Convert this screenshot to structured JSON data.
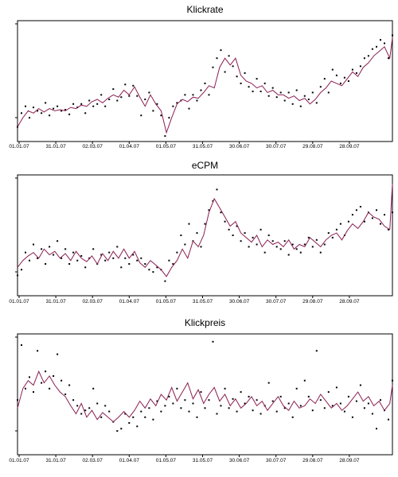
{
  "chart_data": [
    {
      "type": "line",
      "title": "Klickrate",
      "x_tick_labels": [
        "01.01.07",
        "31.01.07",
        "02.03.07",
        "01.04.07",
        "01.05.07",
        "31.05.07",
        "30.06.07",
        "30.07.07",
        "29.08.07",
        "28.09.07"
      ],
      "grid": false,
      "legend": "none",
      "series": [
        {
          "style": "points",
          "color": "#000000",
          "x": [
            0,
            3,
            6,
            9,
            12,
            15,
            18,
            21,
            24,
            27,
            30,
            33,
            36,
            39,
            42,
            45,
            48,
            51,
            54,
            57,
            60,
            63,
            66,
            69,
            72,
            75,
            78,
            81,
            84,
            87,
            90,
            93,
            96,
            99,
            102,
            105,
            108,
            111,
            114,
            117,
            120,
            123,
            126,
            129,
            132,
            135,
            138,
            141,
            144,
            147,
            150,
            153,
            156,
            159,
            162,
            165,
            168,
            171,
            174,
            177,
            180,
            183,
            186,
            189,
            192,
            195,
            198,
            201,
            204,
            207,
            210,
            213,
            216,
            219,
            222,
            225,
            228,
            231,
            234,
            237,
            240,
            243,
            246,
            249,
            252,
            255,
            258,
            261,
            264,
            267,
            270,
            273,
            276,
            279,
            282
          ],
          "y": [
            0.1,
            0.22,
            0.28,
            0.18,
            0.27,
            0.24,
            0.22,
            0.31,
            0.2,
            0.26,
            0.28,
            0.24,
            0.25,
            0.21,
            0.3,
            0.27,
            0.3,
            0.22,
            0.33,
            0.28,
            0.3,
            0.38,
            0.28,
            0.34,
            0.43,
            0.33,
            0.36,
            0.47,
            0.37,
            0.46,
            0.37,
            0.2,
            0.34,
            0.4,
            0.24,
            0.3,
            0.2,
            0.02,
            0.18,
            0.28,
            0.31,
            0.33,
            0.38,
            0.26,
            0.38,
            0.33,
            0.42,
            0.48,
            0.38,
            0.62,
            0.7,
            0.77,
            0.58,
            0.72,
            0.63,
            0.54,
            0.48,
            0.57,
            0.45,
            0.41,
            0.52,
            0.41,
            0.48,
            0.37,
            0.44,
            0.36,
            0.4,
            0.33,
            0.4,
            0.3,
            0.42,
            0.28,
            0.37,
            0.34,
            0.4,
            0.31,
            0.45,
            0.52,
            0.4,
            0.6,
            0.55,
            0.48,
            0.53,
            0.5,
            0.6,
            0.57,
            0.63,
            0.7,
            0.72,
            0.78,
            0.8,
            0.86,
            0.83,
            0.7,
            0.9
          ]
        },
        {
          "style": "line",
          "color": "#8a1e52",
          "x": [
            0,
            4,
            8,
            12,
            16,
            20,
            24,
            28,
            32,
            36,
            40,
            44,
            48,
            52,
            56,
            60,
            64,
            68,
            72,
            76,
            80,
            84,
            88,
            92,
            96,
            100,
            104,
            108,
            112,
            116,
            120,
            124,
            128,
            132,
            136,
            140,
            144,
            148,
            152,
            156,
            160,
            164,
            168,
            172,
            176,
            180,
            184,
            188,
            192,
            196,
            200,
            204,
            208,
            212,
            216,
            220,
            224,
            228,
            232,
            236,
            240,
            244,
            248,
            252,
            256,
            260,
            264,
            268,
            272,
            276,
            280,
            282
          ],
          "y": [
            0.1,
            0.18,
            0.24,
            0.22,
            0.26,
            0.23,
            0.26,
            0.24,
            0.25,
            0.24,
            0.27,
            0.26,
            0.29,
            0.28,
            0.32,
            0.34,
            0.31,
            0.35,
            0.38,
            0.36,
            0.42,
            0.38,
            0.45,
            0.36,
            0.28,
            0.38,
            0.3,
            0.24,
            0.05,
            0.18,
            0.3,
            0.34,
            0.32,
            0.36,
            0.35,
            0.4,
            0.46,
            0.44,
            0.62,
            0.7,
            0.64,
            0.7,
            0.55,
            0.5,
            0.48,
            0.44,
            0.46,
            0.4,
            0.42,
            0.38,
            0.38,
            0.35,
            0.37,
            0.33,
            0.35,
            0.3,
            0.34,
            0.4,
            0.44,
            0.5,
            0.48,
            0.46,
            0.52,
            0.58,
            0.54,
            0.62,
            0.66,
            0.72,
            0.76,
            0.8,
            0.7,
            0.88
          ]
        }
      ]
    },
    {
      "type": "line",
      "title": "eCPM",
      "x_tick_labels": [
        "01.01.07",
        "31.01.07",
        "02.03.07",
        "01.04.07",
        "01.05.07",
        "31.05.07",
        "30.06.07",
        "30.07.07",
        "29.08.07",
        "28.09.07"
      ],
      "grid": false,
      "legend": "none",
      "series": [
        {
          "style": "points",
          "color": "#000000",
          "x": [
            0,
            3,
            6,
            9,
            12,
            15,
            18,
            21,
            24,
            27,
            30,
            33,
            36,
            39,
            42,
            45,
            48,
            51,
            54,
            57,
            60,
            63,
            66,
            69,
            72,
            75,
            78,
            81,
            84,
            87,
            90,
            93,
            96,
            99,
            102,
            105,
            108,
            111,
            114,
            117,
            120,
            123,
            126,
            129,
            132,
            135,
            138,
            141,
            144,
            147,
            150,
            153,
            156,
            159,
            162,
            165,
            168,
            171,
            174,
            177,
            180,
            183,
            186,
            189,
            192,
            195,
            198,
            201,
            204,
            207,
            210,
            213,
            216,
            219,
            222,
            225,
            228,
            231,
            234,
            237,
            240,
            243,
            246,
            249,
            252,
            255,
            258,
            261,
            264,
            267,
            270,
            273,
            276,
            279,
            282
          ],
          "y": [
            0.15,
            0.2,
            0.35,
            0.28,
            0.42,
            0.3,
            0.38,
            0.25,
            0.4,
            0.33,
            0.45,
            0.3,
            0.38,
            0.25,
            0.35,
            0.28,
            0.32,
            0.22,
            0.3,
            0.38,
            0.25,
            0.33,
            0.28,
            0.35,
            0.3,
            0.4,
            0.22,
            0.3,
            0.25,
            0.33,
            0.28,
            0.3,
            0.25,
            0.2,
            0.18,
            0.22,
            0.2,
            0.1,
            0.28,
            0.25,
            0.35,
            0.5,
            0.42,
            0.6,
            0.45,
            0.52,
            0.4,
            0.6,
            0.72,
            0.8,
            0.9,
            0.7,
            0.62,
            0.55,
            0.5,
            0.58,
            0.45,
            0.52,
            0.4,
            0.48,
            0.42,
            0.55,
            0.35,
            0.5,
            0.45,
            0.4,
            0.38,
            0.45,
            0.33,
            0.42,
            0.38,
            0.35,
            0.42,
            0.48,
            0.4,
            0.46,
            0.35,
            0.42,
            0.52,
            0.48,
            0.55,
            0.6,
            0.5,
            0.62,
            0.68,
            0.72,
            0.75,
            0.62,
            0.7,
            0.65,
            0.72,
            0.6,
            0.68,
            0.55,
            0.7
          ]
        },
        {
          "style": "line",
          "color": "#8a1e52",
          "x": [
            0,
            4,
            8,
            12,
            16,
            20,
            24,
            28,
            32,
            36,
            40,
            44,
            48,
            52,
            56,
            60,
            64,
            68,
            72,
            76,
            80,
            84,
            88,
            92,
            96,
            100,
            104,
            108,
            112,
            116,
            120,
            124,
            128,
            132,
            136,
            140,
            144,
            148,
            152,
            156,
            160,
            164,
            168,
            172,
            176,
            180,
            184,
            188,
            192,
            196,
            200,
            204,
            208,
            212,
            216,
            220,
            224,
            228,
            232,
            236,
            240,
            244,
            248,
            252,
            256,
            260,
            264,
            268,
            272,
            276,
            280,
            282
          ],
          "y": [
            0.22,
            0.28,
            0.32,
            0.35,
            0.3,
            0.38,
            0.33,
            0.36,
            0.3,
            0.34,
            0.28,
            0.36,
            0.3,
            0.27,
            0.32,
            0.25,
            0.34,
            0.28,
            0.36,
            0.3,
            0.38,
            0.3,
            0.36,
            0.26,
            0.22,
            0.28,
            0.24,
            0.2,
            0.14,
            0.22,
            0.28,
            0.38,
            0.3,
            0.45,
            0.4,
            0.5,
            0.7,
            0.82,
            0.74,
            0.66,
            0.58,
            0.62,
            0.52,
            0.48,
            0.44,
            0.5,
            0.4,
            0.46,
            0.42,
            0.44,
            0.4,
            0.46,
            0.38,
            0.42,
            0.4,
            0.48,
            0.44,
            0.4,
            0.46,
            0.5,
            0.52,
            0.46,
            0.54,
            0.6,
            0.56,
            0.62,
            0.7,
            0.66,
            0.64,
            0.58,
            0.55,
            0.95
          ]
        }
      ]
    },
    {
      "type": "line",
      "title": "Klickpreis",
      "x_tick_labels": [
        "01.01.07",
        "31.01.07",
        "02.03.07",
        "01.04.07",
        "01.05.07",
        "31.05.07",
        "30.06.07",
        "30.07.07",
        "29.08.07",
        "28.09.07"
      ],
      "grid": false,
      "legend": "none",
      "series": [
        {
          "style": "points",
          "color": "#000000",
          "x": [
            0,
            3,
            6,
            9,
            12,
            15,
            18,
            21,
            24,
            27,
            30,
            33,
            36,
            39,
            42,
            45,
            48,
            51,
            54,
            57,
            60,
            63,
            66,
            69,
            72,
            75,
            78,
            81,
            84,
            87,
            90,
            93,
            96,
            99,
            102,
            105,
            108,
            111,
            114,
            117,
            120,
            123,
            126,
            129,
            132,
            135,
            138,
            141,
            144,
            147,
            150,
            153,
            156,
            159,
            162,
            165,
            168,
            171,
            174,
            177,
            180,
            183,
            186,
            189,
            192,
            195,
            198,
            201,
            204,
            207,
            210,
            213,
            216,
            219,
            222,
            225,
            228,
            231,
            234,
            237,
            240,
            243,
            246,
            249,
            252,
            255,
            258,
            261,
            264,
            267,
            270,
            273,
            276,
            279,
            282
          ],
          "y": [
            0.45,
            0.93,
            0.55,
            0.65,
            0.52,
            0.88,
            0.6,
            0.7,
            0.55,
            0.66,
            0.85,
            0.62,
            0.5,
            0.58,
            0.45,
            0.4,
            0.33,
            0.36,
            0.38,
            0.55,
            0.42,
            0.3,
            0.4,
            0.35,
            0.26,
            0.18,
            0.2,
            0.33,
            0.25,
            0.3,
            0.22,
            0.35,
            0.3,
            0.38,
            0.28,
            0.44,
            0.35,
            0.4,
            0.48,
            0.42,
            0.55,
            0.38,
            0.45,
            0.35,
            0.42,
            0.3,
            0.52,
            0.38,
            0.45,
            0.96,
            0.33,
            0.4,
            0.55,
            0.38,
            0.46,
            0.35,
            0.52,
            0.42,
            0.48,
            0.36,
            0.45,
            0.33,
            0.4,
            0.6,
            0.44,
            0.35,
            0.48,
            0.38,
            0.42,
            0.3,
            0.55,
            0.4,
            0.62,
            0.48,
            0.36,
            0.88,
            0.45,
            0.38,
            0.52,
            0.4,
            0.56,
            0.42,
            0.35,
            0.48,
            0.3,
            0.44,
            0.58,
            0.38,
            0.42,
            0.33,
            0.2,
            0.45,
            0.36,
            0.28,
            0.62
          ]
        },
        {
          "style": "line",
          "color": "#8a1e52",
          "x": [
            0,
            4,
            8,
            12,
            16,
            20,
            24,
            28,
            32,
            36,
            40,
            44,
            48,
            52,
            56,
            60,
            64,
            68,
            72,
            76,
            80,
            84,
            88,
            92,
            96,
            100,
            104,
            108,
            112,
            116,
            120,
            124,
            128,
            132,
            136,
            140,
            144,
            148,
            152,
            156,
            160,
            164,
            168,
            172,
            176,
            180,
            184,
            188,
            192,
            196,
            200,
            204,
            208,
            212,
            216,
            220,
            224,
            228,
            232,
            236,
            240,
            244,
            248,
            252,
            256,
            260,
            264,
            268,
            272,
            276,
            280,
            282
          ],
          "y": [
            0.38,
            0.55,
            0.62,
            0.58,
            0.7,
            0.6,
            0.66,
            0.58,
            0.52,
            0.48,
            0.4,
            0.33,
            0.42,
            0.3,
            0.36,
            0.28,
            0.34,
            0.3,
            0.26,
            0.3,
            0.35,
            0.3,
            0.36,
            0.44,
            0.38,
            0.46,
            0.4,
            0.5,
            0.45,
            0.56,
            0.44,
            0.52,
            0.6,
            0.46,
            0.54,
            0.42,
            0.5,
            0.56,
            0.44,
            0.5,
            0.4,
            0.46,
            0.38,
            0.42,
            0.48,
            0.4,
            0.44,
            0.36,
            0.42,
            0.48,
            0.4,
            0.36,
            0.44,
            0.38,
            0.4,
            0.46,
            0.42,
            0.5,
            0.44,
            0.38,
            0.42,
            0.36,
            0.4,
            0.46,
            0.52,
            0.44,
            0.48,
            0.4,
            0.44,
            0.36,
            0.42,
            0.58
          ]
        }
      ]
    }
  ]
}
